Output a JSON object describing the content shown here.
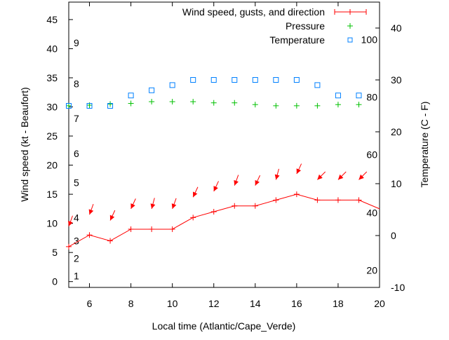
{
  "chart_data": {
    "type": "line",
    "xlabel": "Local time (Atlantic/Cape_Verde)",
    "ylabel": "Wind speed (kt - Beaufort)",
    "y2label": "Temperature (C - F)",
    "xlim": [
      5,
      20
    ],
    "ylim": [
      -1,
      48
    ],
    "y2lim": [
      -10,
      45
    ],
    "xticks": [
      6,
      8,
      10,
      12,
      14,
      16,
      18,
      20
    ],
    "yticks": [
      0,
      5,
      10,
      15,
      20,
      25,
      30,
      35,
      40,
      45
    ],
    "y2ticks": [
      -10,
      0,
      10,
      20,
      30,
      40
    ],
    "beaufort_labels": [
      {
        "label": "1",
        "kt": 1
      },
      {
        "label": "2",
        "kt": 4
      },
      {
        "label": "3",
        "kt": 7
      },
      {
        "label": "4",
        "kt": 11
      },
      {
        "label": "5",
        "kt": 17
      },
      {
        "label": "6",
        "kt": 22
      },
      {
        "label": "7",
        "kt": 28
      },
      {
        "label": "8",
        "kt": 34
      },
      {
        "label": "9",
        "kt": 41
      }
    ],
    "fahrenheit_labels": [
      {
        "label": "20",
        "c": -6.7
      },
      {
        "label": "40",
        "c": 4.4
      },
      {
        "label": "60",
        "c": 15.6
      },
      {
        "label": "80",
        "c": 26.7
      },
      {
        "label": "100",
        "c": 37.8
      }
    ],
    "legend": {
      "placement": "top-right",
      "entries": [
        "Wind speed, gusts, and direction",
        "Pressure",
        "Temperature"
      ]
    },
    "series": [
      {
        "name": "Wind speed, gusts, and direction",
        "color": "#ff0000",
        "axis": "y",
        "x": [
          5,
          6,
          7,
          8,
          9,
          10,
          11,
          12,
          13,
          14,
          15,
          16,
          17,
          18,
          19,
          20
        ],
        "values": [
          6,
          8,
          7,
          9,
          9,
          9,
          11,
          12,
          13,
          13,
          14,
          15,
          14,
          14,
          14,
          12.5
        ]
      },
      {
        "name": "Wind direction arrows",
        "color": "#ff0000",
        "axis": "y",
        "x": [
          5,
          6,
          7,
          8,
          9,
          10,
          11,
          12,
          13,
          14,
          15,
          16,
          17,
          18,
          19
        ],
        "values": [
          9.5,
          11.5,
          10.5,
          12.5,
          12.5,
          12.5,
          14.5,
          15.5,
          16.5,
          16.5,
          17.5,
          18.5,
          17.5,
          17.5,
          17.5
        ],
        "direction_deg": [
          20,
          20,
          25,
          25,
          15,
          20,
          25,
          25,
          20,
          25,
          15,
          25,
          45,
          45,
          45
        ]
      },
      {
        "name": "Pressure",
        "color": "#00c000",
        "axis": "y",
        "x": [
          5,
          6,
          7,
          8,
          9,
          10,
          11,
          12,
          13,
          14,
          15,
          16,
          17,
          18,
          19
        ],
        "values": [
          30.2,
          30.3,
          30.5,
          30.6,
          30.9,
          30.9,
          30.9,
          30.7,
          30.7,
          30.4,
          30.2,
          30.2,
          30.2,
          30.4,
          30.4
        ]
      },
      {
        "name": "Temperature",
        "color": "#0080ff",
        "axis": "y2",
        "x": [
          5,
          6,
          7,
          8,
          9,
          10,
          11,
          12,
          13,
          14,
          15,
          16,
          17,
          18,
          19
        ],
        "values": [
          25,
          25,
          25,
          27,
          28,
          29,
          30,
          30,
          30,
          30,
          30,
          30,
          29,
          27,
          27
        ]
      }
    ]
  }
}
